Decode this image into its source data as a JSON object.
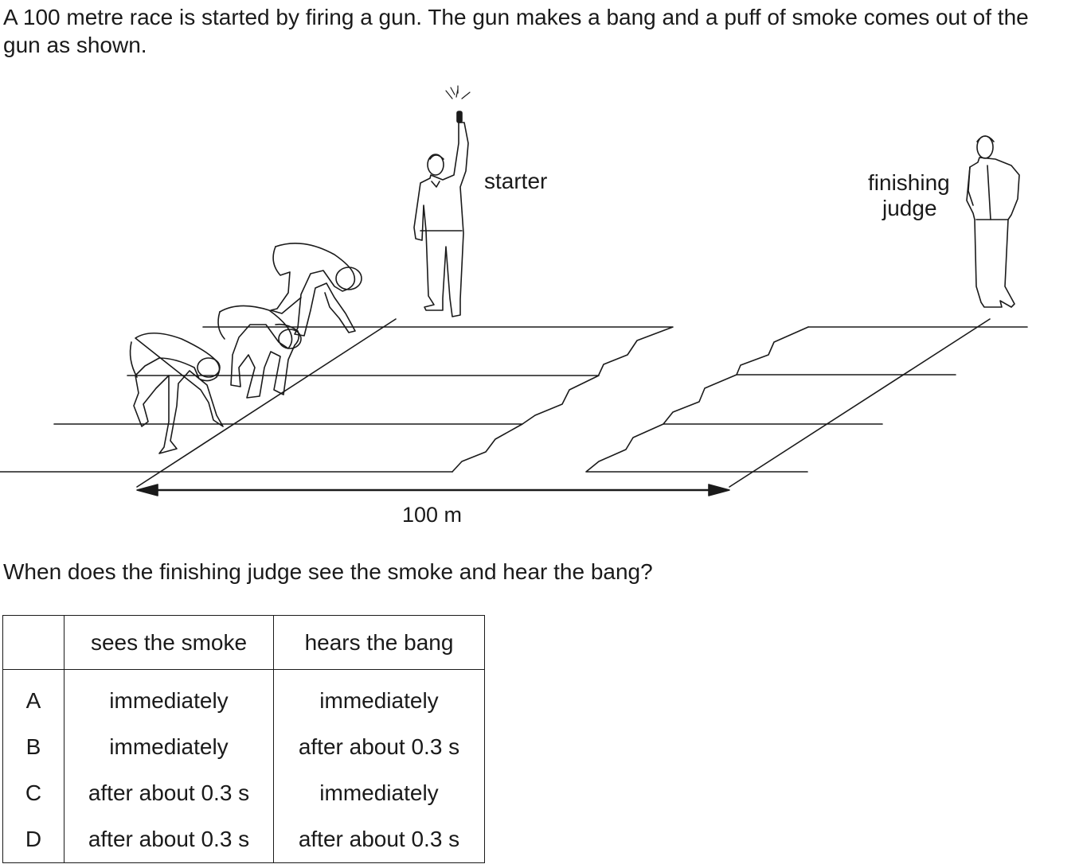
{
  "intro": "A 100 metre race is started by firing a gun. The gun makes a bang and a puff of smoke comes out of the gun as shown.",
  "figure": {
    "starter_label": "starter",
    "judge_label_line1": "finishing",
    "judge_label_line2": "judge",
    "distance_label": "100 m"
  },
  "question": "When does the finishing judge see the smoke and hear the bang?",
  "table": {
    "headers": [
      "",
      "sees the smoke",
      "hears the bang"
    ],
    "rows": [
      {
        "letter": "A",
        "sees": "immediately",
        "hears": "immediately"
      },
      {
        "letter": "B",
        "sees": "immediately",
        "hears": "after about 0.3 s"
      },
      {
        "letter": "C",
        "sees": "after about 0.3 s",
        "hears": "immediately"
      },
      {
        "letter": "D",
        "sees": "after about 0.3 s",
        "hears": "after about 0.3 s"
      }
    ]
  }
}
